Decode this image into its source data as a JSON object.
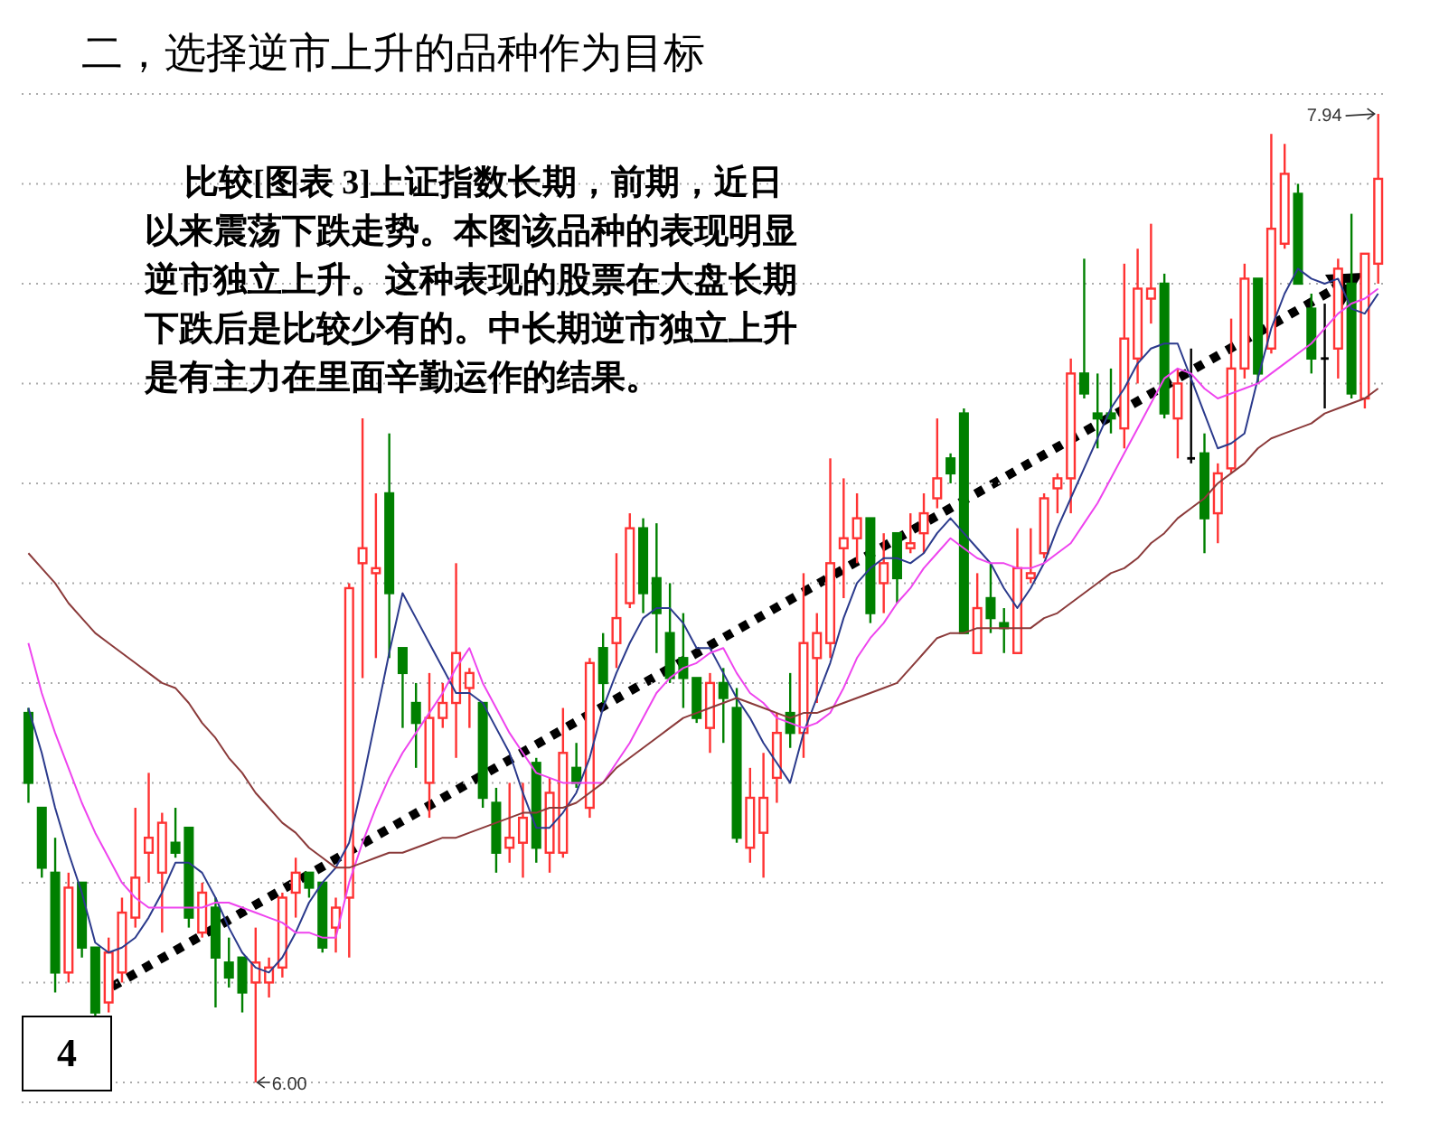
{
  "chart_data": {
    "type": "candlestick",
    "title": "二，选择逆市上升的品种作为目标",
    "categories": [
      null,
      null,
      null,
      null,
      null,
      null,
      null,
      null,
      null,
      null,
      null,
      null,
      null,
      null,
      null,
      null,
      null,
      null,
      null,
      null,
      null,
      null,
      null,
      null,
      null,
      null,
      null,
      null,
      null,
      null,
      null,
      null,
      null,
      null,
      null,
      null,
      null,
      null,
      null,
      null,
      null,
      null,
      null,
      null,
      null,
      null,
      null,
      null,
      null,
      null,
      null,
      null,
      null,
      null,
      null,
      null,
      null,
      null,
      null,
      null,
      null,
      null,
      null,
      null,
      null,
      null,
      null,
      null,
      null,
      null,
      null,
      null,
      null,
      null,
      null,
      null,
      null,
      null,
      null,
      null,
      null,
      null,
      null,
      null,
      null,
      null,
      null,
      null,
      null,
      null,
      null,
      null,
      null,
      null,
      null,
      null,
      null,
      null,
      null,
      null,
      null,
      null
    ],
    "ohlc": [
      [
        6.74,
        6.75,
        6.56,
        6.6
      ],
      [
        6.55,
        6.55,
        6.41,
        6.43
      ],
      [
        6.42,
        6.49,
        6.18,
        6.22
      ],
      [
        6.22,
        6.42,
        6.2,
        6.39
      ],
      [
        6.4,
        6.4,
        6.25,
        6.27
      ],
      [
        6.27,
        6.27,
        6.13,
        6.14
      ],
      [
        6.16,
        6.29,
        6.14,
        6.26
      ],
      [
        6.22,
        6.37,
        6.2,
        6.34
      ],
      [
        6.33,
        6.55,
        6.31,
        6.41
      ],
      [
        6.46,
        6.62,
        6.4,
        6.49
      ],
      [
        6.42,
        6.54,
        6.3,
        6.52
      ],
      [
        6.48,
        6.55,
        6.45,
        6.46
      ],
      [
        6.51,
        6.51,
        6.31,
        6.33
      ],
      [
        6.3,
        6.4,
        6.29,
        6.38
      ],
      [
        6.35,
        6.37,
        6.15,
        6.25
      ],
      [
        6.24,
        6.29,
        6.19,
        6.21
      ],
      [
        6.25,
        6.25,
        6.14,
        6.18
      ],
      [
        6.2,
        6.31,
        6.0,
        6.24
      ],
      [
        6.2,
        6.25,
        6.17,
        6.23
      ],
      [
        6.23,
        6.38,
        6.21,
        6.37
      ],
      [
        6.38,
        6.45,
        6.33,
        6.42
      ],
      [
        6.42,
        6.42,
        6.37,
        6.39
      ],
      [
        6.4,
        6.4,
        6.26,
        6.27
      ],
      [
        6.31,
        6.37,
        6.26,
        6.35
      ],
      [
        6.37,
        7.0,
        6.25,
        6.99
      ],
      [
        7.04,
        7.33,
        6.81,
        7.07
      ],
      [
        7.02,
        7.18,
        6.85,
        7.03
      ],
      [
        7.18,
        7.3,
        6.85,
        6.98
      ],
      [
        6.87,
        6.87,
        6.71,
        6.82
      ],
      [
        6.76,
        6.8,
        6.63,
        6.72
      ],
      [
        6.6,
        6.82,
        6.53,
        6.73
      ],
      [
        6.73,
        6.8,
        6.71,
        6.76
      ],
      [
        6.76,
        7.04,
        6.65,
        6.86
      ],
      [
        6.79,
        6.83,
        6.71,
        6.82
      ],
      [
        6.76,
        6.76,
        6.55,
        6.57
      ],
      [
        6.56,
        6.59,
        6.42,
        6.46
      ],
      [
        6.47,
        6.6,
        6.44,
        6.49
      ],
      [
        6.48,
        6.6,
        6.41,
        6.53
      ],
      [
        6.64,
        6.65,
        6.44,
        6.47
      ],
      [
        6.46,
        6.61,
        6.42,
        6.58
      ],
      [
        6.46,
        6.75,
        6.45,
        6.66
      ],
      [
        6.63,
        6.68,
        6.59,
        6.6
      ],
      [
        6.55,
        6.85,
        6.53,
        6.84
      ],
      [
        6.87,
        6.9,
        6.76,
        6.8
      ],
      [
        6.88,
        7.06,
        6.83,
        6.93
      ],
      [
        6.96,
        7.14,
        6.95,
        7.11
      ],
      [
        7.11,
        7.13,
        6.94,
        6.98
      ],
      [
        7.01,
        7.12,
        6.86,
        6.94
      ],
      [
        6.9,
        7.0,
        6.8,
        6.81
      ],
      [
        6.85,
        6.94,
        6.75,
        6.81
      ],
      [
        6.81,
        6.81,
        6.72,
        6.73
      ],
      [
        6.71,
        6.82,
        6.66,
        6.8
      ],
      [
        6.8,
        6.83,
        6.68,
        6.77
      ],
      [
        6.75,
        6.79,
        6.48,
        6.49
      ],
      [
        6.47,
        6.63,
        6.44,
        6.57
      ],
      [
        6.5,
        6.66,
        6.41,
        6.57
      ],
      [
        6.61,
        6.74,
        6.56,
        6.7
      ],
      [
        6.74,
        6.82,
        6.67,
        6.7
      ],
      [
        6.7,
        7.02,
        6.65,
        6.88
      ],
      [
        6.85,
        6.94,
        6.76,
        6.9
      ],
      [
        6.88,
        7.25,
        6.85,
        7.04
      ],
      [
        7.07,
        7.21,
        6.97,
        7.09
      ],
      [
        7.09,
        7.18,
        7.04,
        7.13
      ],
      [
        7.13,
        7.13,
        6.92,
        6.94
      ],
      [
        7.0,
        7.1,
        6.94,
        7.04
      ],
      [
        7.1,
        7.1,
        6.96,
        7.01
      ],
      [
        7.07,
        7.14,
        7.06,
        7.08
      ],
      [
        7.1,
        7.18,
        7.06,
        7.14
      ],
      [
        7.17,
        7.33,
        7.15,
        7.21
      ],
      [
        7.25,
        7.26,
        7.2,
        7.22
      ],
      [
        7.34,
        7.35,
        6.9,
        6.9
      ],
      [
        6.86,
        7.02,
        6.86,
        6.95
      ],
      [
        6.97,
        7.04,
        6.9,
        6.93
      ],
      [
        6.92,
        6.95,
        6.86,
        6.91
      ],
      [
        6.86,
        7.11,
        6.86,
        7.03
      ],
      [
        7.01,
        7.11,
        7.0,
        7.02
      ],
      [
        7.06,
        7.18,
        7.05,
        7.17
      ],
      [
        7.19,
        7.22,
        7.14,
        7.21
      ],
      [
        7.21,
        7.45,
        7.14,
        7.42
      ],
      [
        7.42,
        7.65,
        7.37,
        7.38
      ],
      [
        7.34,
        7.42,
        7.27,
        7.33
      ],
      [
        7.34,
        7.43,
        7.3,
        7.33
      ],
      [
        7.31,
        7.64,
        7.27,
        7.49
      ],
      [
        7.45,
        7.67,
        7.4,
        7.59
      ],
      [
        7.57,
        7.72,
        7.52,
        7.59
      ],
      [
        7.6,
        7.62,
        7.33,
        7.34
      ],
      [
        7.33,
        7.43,
        7.25,
        7.4
      ],
      [
        7.25,
        7.47,
        7.24,
        7.25
      ],
      [
        7.26,
        7.3,
        7.06,
        7.13
      ],
      [
        7.14,
        7.24,
        7.08,
        7.22
      ],
      [
        7.23,
        7.53,
        7.22,
        7.43
      ],
      [
        7.43,
        7.64,
        7.41,
        7.61
      ],
      [
        7.61,
        7.61,
        7.4,
        7.42
      ],
      [
        7.47,
        7.9,
        7.46,
        7.71
      ],
      [
        7.68,
        7.88,
        7.67,
        7.82
      ],
      [
        7.78,
        7.8,
        7.6,
        7.6
      ],
      [
        7.55,
        7.58,
        7.42,
        7.45
      ],
      [
        7.45,
        7.56,
        7.35,
        7.45
      ],
      [
        7.47,
        7.65,
        7.41,
        7.63
      ],
      [
        7.6,
        7.74,
        7.37,
        7.38
      ],
      [
        7.37,
        7.66,
        7.35,
        7.66
      ],
      [
        7.64,
        7.94,
        7.6,
        7.81
      ]
    ],
    "colors": [
      "#008000",
      "#008000",
      "#008000",
      "#ff3333",
      "#008000",
      "#008000",
      "#ff3333",
      "#ff3333",
      "#ff3333",
      "#ff3333",
      "#ff3333",
      "#008000",
      "#008000",
      "#ff3333",
      "#008000",
      "#008000",
      "#008000",
      "#ff3333",
      "#ff3333",
      "#ff3333",
      "#ff3333",
      "#008000",
      "#008000",
      "#ff3333",
      "#ff3333",
      "#ff3333",
      "#ff3333",
      "#008000",
      "#008000",
      "#008000",
      "#ff3333",
      "#ff3333",
      "#ff3333",
      "#ff3333",
      "#008000",
      "#008000",
      "#ff3333",
      "#ff3333",
      "#008000",
      "#ff3333",
      "#ff3333",
      "#008000",
      "#ff3333",
      "#008000",
      "#ff3333",
      "#ff3333",
      "#008000",
      "#008000",
      "#008000",
      "#008000",
      "#008000",
      "#ff3333",
      "#008000",
      "#008000",
      "#ff3333",
      "#ff3333",
      "#ff3333",
      "#008000",
      "#ff3333",
      "#ff3333",
      "#ff3333",
      "#ff3333",
      "#ff3333",
      "#008000",
      "#ff3333",
      "#008000",
      "#ff3333",
      "#ff3333",
      "#ff3333",
      "#008000",
      "#008000",
      "#ff3333",
      "#008000",
      "#008000",
      "#ff3333",
      "#ff3333",
      "#ff3333",
      "#ff3333",
      "#ff3333",
      "#008000",
      "#008000",
      "#008000",
      "#ff3333",
      "#ff3333",
      "#ff3333",
      "#008000",
      "#ff3333",
      "#000000",
      "#008000",
      "#ff3333",
      "#ff3333",
      "#ff3333",
      "#008000",
      "#ff3333",
      "#ff3333",
      "#008000",
      "#008000",
      "#000000",
      "#ff3333",
      "#008000",
      "#ff3333",
      "#ff3333"
    ],
    "series": [
      {
        "type": "line",
        "color": "#2b3a8c",
        "values": [
          6.75,
          6.66,
          6.55,
          6.46,
          6.38,
          6.28,
          6.26,
          6.27,
          6.29,
          6.33,
          6.38,
          6.44,
          6.44,
          6.42,
          6.37,
          6.31,
          6.26,
          6.23,
          6.22,
          6.25,
          6.3,
          6.36,
          6.4,
          6.43,
          6.48,
          6.6,
          6.73,
          6.86,
          6.98,
          6.93,
          6.88,
          6.83,
          6.78,
          6.78,
          6.76,
          6.71,
          6.66,
          6.58,
          6.51,
          6.51,
          6.54,
          6.58,
          6.65,
          6.75,
          6.82,
          6.88,
          6.93,
          6.95,
          6.95,
          6.92,
          6.87,
          6.87,
          6.82,
          6.77,
          6.73,
          6.68,
          6.64,
          6.6,
          6.7,
          6.77,
          6.84,
          6.93,
          7.0,
          7.03,
          7.05,
          7.05,
          7.04,
          7.06,
          7.1,
          7.13,
          7.1,
          7.07,
          7.04,
          6.99,
          6.95,
          6.99,
          7.04,
          7.11,
          7.17,
          7.23,
          7.29,
          7.35,
          7.39,
          7.44,
          7.47,
          7.48,
          7.48,
          7.41,
          7.34,
          7.27,
          7.28,
          7.3,
          7.41,
          7.51,
          7.58,
          7.63,
          7.61,
          7.6,
          7.61,
          7.55,
          7.54,
          7.58
        ]
      },
      {
        "type": "line",
        "color": "#ee44ee",
        "values": [
          6.88,
          6.78,
          6.7,
          6.63,
          6.56,
          6.5,
          6.45,
          6.4,
          6.37,
          6.35,
          6.35,
          6.35,
          6.35,
          6.35,
          6.36,
          6.36,
          6.35,
          6.34,
          6.33,
          6.32,
          6.3,
          6.3,
          6.29,
          6.29,
          6.4,
          6.48,
          6.55,
          6.61,
          6.66,
          6.7,
          6.74,
          6.78,
          6.83,
          6.87,
          6.8,
          6.75,
          6.7,
          6.66,
          6.62,
          6.61,
          6.6,
          6.6,
          6.6,
          6.6,
          6.64,
          6.68,
          6.73,
          6.78,
          6.81,
          6.83,
          6.84,
          6.86,
          6.87,
          6.82,
          6.78,
          6.76,
          6.73,
          6.72,
          6.71,
          6.72,
          6.74,
          6.79,
          6.85,
          6.89,
          6.92,
          6.96,
          6.99,
          7.03,
          7.06,
          7.09,
          7.07,
          7.05,
          7.04,
          7.04,
          7.03,
          7.03,
          7.04,
          7.06,
          7.08,
          7.12,
          7.16,
          7.21,
          7.26,
          7.31,
          7.36,
          7.41,
          7.43,
          7.42,
          7.39,
          7.37,
          7.38,
          7.39,
          7.4,
          7.42,
          7.44,
          7.46,
          7.48,
          7.51,
          7.54,
          7.56,
          7.57,
          7.59
        ]
      },
      {
        "type": "line",
        "color": "#8b3a3a",
        "values": [
          7.06,
          7.03,
          7.0,
          6.96,
          6.93,
          6.9,
          6.88,
          6.86,
          6.84,
          6.82,
          6.8,
          6.79,
          6.76,
          6.72,
          6.69,
          6.65,
          6.62,
          6.58,
          6.55,
          6.52,
          6.5,
          6.47,
          6.45,
          6.43,
          6.43,
          6.44,
          6.45,
          6.46,
          6.46,
          6.47,
          6.48,
          6.49,
          6.49,
          6.5,
          6.51,
          6.52,
          6.53,
          6.54,
          6.54,
          6.55,
          6.55,
          6.56,
          6.58,
          6.6,
          6.63,
          6.65,
          6.67,
          6.69,
          6.71,
          6.73,
          6.74,
          6.75,
          6.76,
          6.77,
          6.76,
          6.75,
          6.74,
          6.73,
          6.74,
          6.74,
          6.75,
          6.76,
          6.77,
          6.78,
          6.79,
          6.8,
          6.83,
          6.86,
          6.89,
          6.9,
          6.9,
          6.91,
          6.91,
          6.91,
          6.91,
          6.91,
          6.93,
          6.94,
          6.96,
          6.98,
          7.0,
          7.02,
          7.03,
          7.05,
          7.08,
          7.1,
          7.13,
          7.15,
          7.17,
          7.2,
          7.22,
          7.24,
          7.27,
          7.29,
          7.3,
          7.31,
          7.32,
          7.34,
          7.35,
          7.36,
          7.37,
          7.39
        ]
      }
    ],
    "ylim": [
      5.96,
      7.98
    ],
    "yticks": [
      {
        "value": 6.0,
        "label": null
      },
      {
        "value": 6.2,
        "label": null
      },
      {
        "value": 6.4,
        "label": null
      },
      {
        "value": 6.6,
        "label": null
      },
      {
        "value": 6.8,
        "label": null
      },
      {
        "value": 7.0,
        "label": null
      },
      {
        "value": 7.2,
        "label": null
      },
      {
        "value": 7.4,
        "label": null
      },
      {
        "value": 7.6,
        "label": null
      },
      {
        "value": 7.8,
        "label": null
      }
    ],
    "grid": "y",
    "tick_labels": false,
    "marker": "none",
    "line_style": "solid",
    "annotations": [
      "7.94",
      "6.00",
      "比较[图表 3]上证指数长期，前期，近日以来震荡下跌走势。本图该品种的表现明显逆市独立上升。这种表现的股票在大盘长期下跌后是比较少有的。中长期逆市独立上升是有主力在里面辛勤运作的结果。",
      "4"
    ]
  }
}
